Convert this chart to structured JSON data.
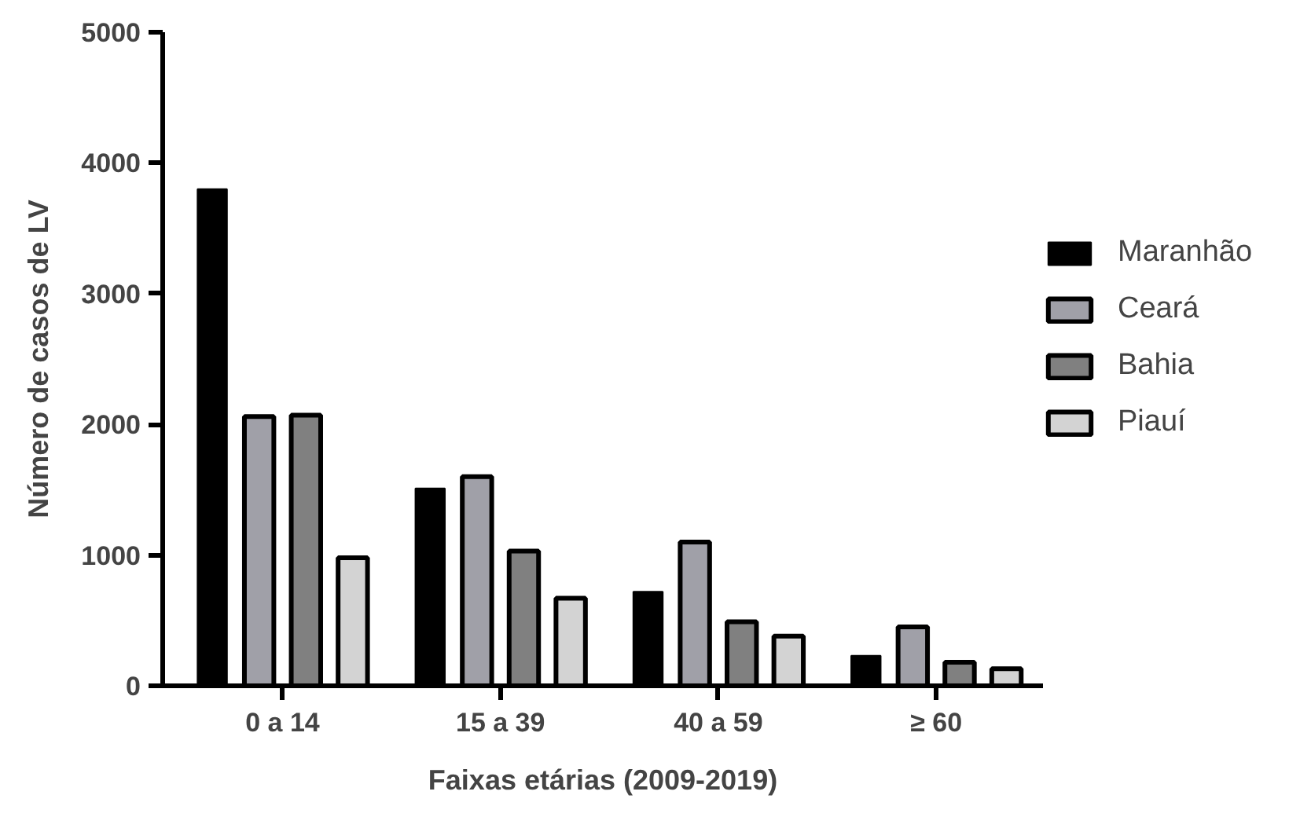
{
  "chart_data": {
    "type": "bar",
    "xlabel": "Faixas etárias (2009-2019)",
    "ylabel": "Número de casos de LV",
    "categories": [
      "0 a 14",
      "15 a 39",
      "40 a 59",
      "≥ 60"
    ],
    "series": [
      {
        "name": "Maranhão",
        "color": "#000000",
        "values": [
          3800,
          1510,
          720,
          230
        ]
      },
      {
        "name": "Ceará",
        "color": "#a0a0a8",
        "values": [
          2060,
          1600,
          1100,
          450
        ]
      },
      {
        "name": "Bahia",
        "color": "#808080",
        "values": [
          2070,
          1030,
          490,
          180
        ]
      },
      {
        "name": "Piauí",
        "color": "#d3d3d3",
        "values": [
          980,
          670,
          380,
          130
        ]
      }
    ],
    "ylim": [
      0,
      5000
    ],
    "yticks": [
      0,
      1000,
      2000,
      3000,
      4000,
      5000
    ],
    "grid": false,
    "legend": "right"
  }
}
